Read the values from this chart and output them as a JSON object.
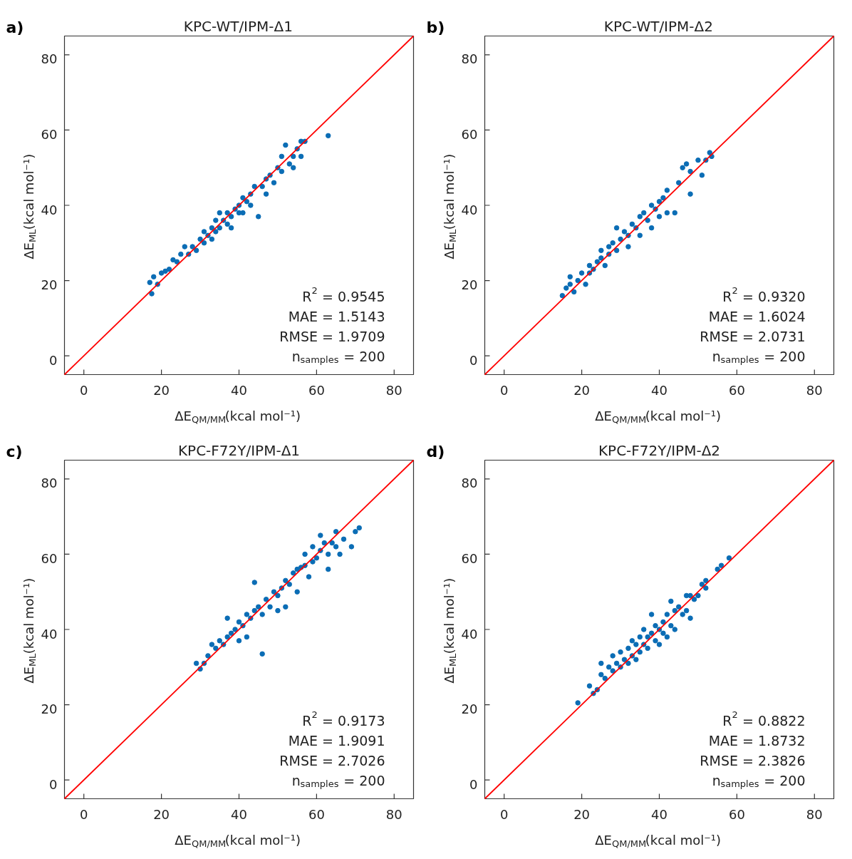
{
  "chart_data": [
    {
      "type": "scatter",
      "title": "KPC-WT/IPM-Δ1",
      "xlabel": "ΔE$_{QM/MM}$(kcal mol⁻¹)",
      "ylabel": "ΔE$_{ML}$(kcal mol⁻¹)",
      "xlim": [
        -5,
        85
      ],
      "ylim": [
        -5,
        85
      ],
      "xticks": [
        0,
        20,
        40,
        60,
        80
      ],
      "yticks": [
        0,
        20,
        40,
        60,
        80
      ],
      "grid": false,
      "marker": "circle",
      "annotations": [
        "a)",
        "R$^{2}$ = 0.9545",
        "MAE = 1.5143",
        "RMSE = 1.9709",
        "n$_{samples}$ = 200"
      ],
      "series": [
        {
          "color": "#0b6db5",
          "x": [
            17,
            17.5,
            18,
            19,
            20,
            21,
            22,
            23,
            24,
            25,
            26,
            27,
            28,
            29,
            30,
            31,
            31,
            32,
            33,
            33,
            34,
            34,
            35,
            35,
            36,
            37,
            37,
            38,
            38,
            39,
            40,
            40,
            41,
            41,
            42,
            43,
            43,
            44,
            45,
            46,
            47,
            47,
            48,
            49,
            50,
            51,
            51,
            52,
            53,
            54,
            54,
            55,
            56,
            57,
            56,
            63
          ],
          "values": [
            19.5,
            16.5,
            21,
            19,
            22,
            22.5,
            23,
            25.5,
            25,
            27,
            29,
            27,
            29,
            28,
            31,
            30,
            33,
            32,
            34,
            31,
            36,
            33,
            38,
            34,
            36,
            35,
            38,
            37,
            34,
            39,
            40,
            38,
            42,
            38,
            41,
            43,
            40,
            45,
            37,
            45,
            47,
            43,
            48,
            46,
            50,
            53,
            49,
            56,
            51,
            53,
            50,
            55,
            57,
            57,
            53,
            58.5
          ]
        },
        {
          "type": "line",
          "color": "#ff0000",
          "x": [
            -5,
            85
          ],
          "values": [
            -5,
            85
          ],
          "marker": "none"
        }
      ]
    },
    {
      "type": "scatter",
      "title": "KPC-WT/IPM-Δ2",
      "xlabel": "ΔE$_{QM/MM}$(kcal mol⁻¹)",
      "ylabel": "ΔE$_{ML}$(kcal mol⁻¹)",
      "xlim": [
        -5,
        85
      ],
      "ylim": [
        -5,
        85
      ],
      "xticks": [
        0,
        20,
        40,
        60,
        80
      ],
      "yticks": [
        0,
        20,
        40,
        60,
        80
      ],
      "grid": false,
      "marker": "circle",
      "annotations": [
        "b)",
        "R$^{2}$ = 0.9320",
        "MAE = 1.6024",
        "RMSE = 2.0731",
        "n$_{samples}$ = 200"
      ],
      "series": [
        {
          "color": "#0b6db5",
          "x": [
            15,
            16,
            17,
            17,
            18,
            19,
            20,
            21,
            22,
            22,
            23,
            24,
            25,
            25,
            26,
            27,
            27,
            28,
            29,
            29,
            30,
            31,
            32,
            32,
            33,
            34,
            35,
            35,
            36,
            37,
            38,
            38,
            39,
            40,
            40,
            41,
            42,
            42,
            44,
            45,
            46,
            47,
            48,
            48,
            50,
            51,
            52,
            53,
            53.5
          ],
          "values": [
            16,
            18,
            19,
            21,
            17,
            20,
            22,
            19,
            22,
            24,
            23,
            25,
            26,
            28,
            24,
            29,
            27,
            30,
            28,
            34,
            31,
            33,
            32,
            29,
            35,
            34,
            37,
            32,
            38,
            36,
            40,
            34,
            39,
            41,
            37,
            42,
            44,
            38,
            38,
            46,
            50,
            51,
            49,
            43,
            52,
            48,
            52,
            54,
            53
          ]
        },
        {
          "type": "line",
          "color": "#ff0000",
          "x": [
            -5,
            85
          ],
          "values": [
            -5,
            85
          ],
          "marker": "none"
        }
      ]
    },
    {
      "type": "scatter",
      "title": "KPC-F72Y/IPM-Δ1",
      "xlabel": "ΔE$_{QM/MM}$(kcal mol⁻¹)",
      "ylabel": "ΔE$_{ML}$(kcal mol⁻¹)",
      "xlim": [
        -5,
        85
      ],
      "ylim": [
        -5,
        85
      ],
      "xticks": [
        0,
        20,
        40,
        60,
        80
      ],
      "yticks": [
        0,
        20,
        40,
        60,
        80
      ],
      "grid": false,
      "marker": "circle",
      "annotations": [
        "c)",
        "R$^{2}$ = 0.9173",
        "MAE = 1.9091",
        "RMSE = 2.7026",
        "n$_{samples}$ = 200"
      ],
      "series": [
        {
          "color": "#0b6db5",
          "x": [
            29,
            30,
            31,
            32,
            33,
            34,
            35,
            36,
            37,
            37,
            38,
            39,
            40,
            40,
            41,
            42,
            42,
            43,
            44,
            44,
            45,
            46,
            46,
            47,
            48,
            49,
            50,
            50,
            51,
            52,
            52,
            53,
            54,
            55,
            55,
            56,
            57,
            57,
            58,
            59,
            59,
            60,
            61,
            61,
            62,
            63,
            63,
            64,
            65,
            65,
            66,
            67,
            69,
            70,
            71
          ],
          "values": [
            31,
            29.5,
            31,
            33,
            36,
            35,
            37,
            36,
            38,
            43,
            39,
            40,
            42,
            37,
            41,
            44,
            38,
            43,
            45,
            52.5,
            46,
            44,
            33.5,
            48,
            46,
            50,
            49,
            45,
            51,
            53,
            46,
            52,
            55,
            56,
            50,
            56.5,
            57,
            60,
            54,
            58,
            62,
            59,
            61,
            65,
            63,
            60,
            56,
            63,
            62,
            66,
            60,
            64,
            62,
            66,
            67
          ]
        },
        {
          "type": "line",
          "color": "#ff0000",
          "x": [
            -5,
            85
          ],
          "values": [
            -5,
            85
          ],
          "marker": "none"
        }
      ]
    },
    {
      "type": "scatter",
      "title": "KPC-F72Y/IPM-Δ2",
      "xlabel": "ΔE$_{QM/MM}$(kcal mol⁻¹)",
      "ylabel": "ΔE$_{ML}$(kcal mol⁻¹)",
      "xlim": [
        -5,
        85
      ],
      "ylim": [
        -5,
        85
      ],
      "xticks": [
        0,
        20,
        40,
        60,
        80
      ],
      "yticks": [
        0,
        20,
        40,
        60,
        80
      ],
      "grid": false,
      "marker": "circle",
      "annotations": [
        "d)",
        "R$^{2}$ = 0.8822",
        "MAE = 1.8732",
        "RMSE = 2.3826",
        "n$_{samples}$ = 200"
      ],
      "series": [
        {
          "color": "#0b6db5",
          "x": [
            19,
            22,
            23,
            24,
            25,
            25,
            26,
            27,
            28,
            28,
            29,
            30,
            30,
            31,
            32,
            32,
            33,
            33,
            34,
            34,
            35,
            35,
            36,
            36,
            37,
            37,
            38,
            38,
            39,
            39,
            40,
            40,
            41,
            41,
            42,
            42,
            43,
            43,
            44,
            44,
            45,
            46,
            47,
            47,
            48,
            48,
            49,
            50,
            51,
            52,
            52,
            55,
            56,
            58
          ],
          "values": [
            20.5,
            25,
            23,
            24,
            31,
            28,
            27,
            30,
            33,
            29,
            31,
            34,
            30,
            32,
            35,
            31,
            33,
            37,
            36,
            32,
            34,
            38,
            40,
            36,
            38,
            35,
            39,
            44,
            41,
            37,
            40,
            36,
            42,
            39,
            44,
            38,
            41,
            47.5,
            45,
            40,
            46,
            44,
            45,
            49,
            43,
            49,
            48,
            49,
            52,
            53,
            51,
            56,
            57,
            59
          ]
        },
        {
          "type": "line",
          "color": "#ff0000",
          "x": [
            -5,
            85
          ],
          "values": [
            -5,
            85
          ],
          "marker": "none"
        }
      ]
    }
  ]
}
